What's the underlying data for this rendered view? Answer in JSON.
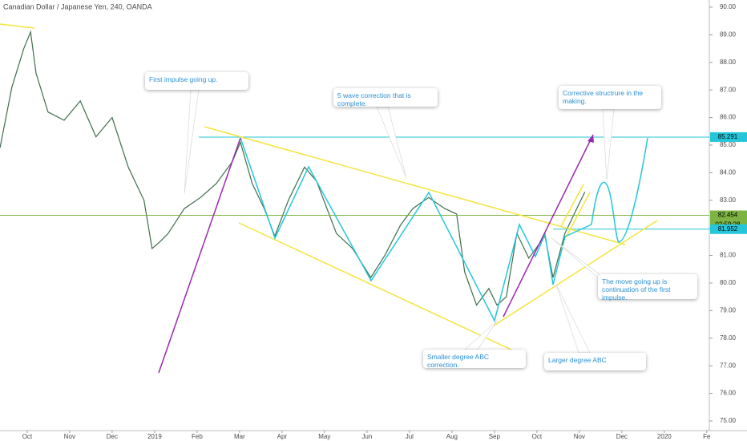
{
  "title": "Canadian Dollar / Japanese Yen, 240, OANDA",
  "annotations": [
    "First impulse going up.",
    "5 wave correction that is complete.",
    "Corrective structrure in the making.",
    "The move going up is continuation of the first impulse.",
    "Smaller degree ABC correction.",
    "Larger degree ABC"
  ],
  "chart_data": {
    "type": "line",
    "color": "#3d6e4a",
    "x": [
      -0.64,
      -0.36,
      -0.08,
      0.08,
      0.21,
      0.49,
      0.87,
      1.25,
      1.62,
      2.0,
      2.38,
      2.75,
      2.94,
      3.13,
      3.32,
      3.7,
      4.08,
      4.45,
      4.83,
      5.02,
      5.3,
      5.58,
      5.83,
      6.15,
      6.53,
      6.81,
      7.28,
      7.66,
      8.09,
      8.42,
      8.79,
      9.08,
      9.45,
      9.83,
      10.11,
      10.3,
      10.58,
      10.87,
      11.06,
      11.28,
      11.53,
      11.81,
      12.19,
      12.38,
      12.66,
      12.94,
      13.13
    ],
    "values": [
      84.9,
      87.1,
      88.5,
      89.1,
      87.6,
      86.2,
      85.9,
      86.6,
      85.3,
      86.0,
      84.2,
      83.0,
      81.25,
      81.5,
      81.8,
      82.7,
      83.1,
      83.6,
      84.4,
      85.1,
      83.6,
      82.7,
      81.7,
      83.0,
      84.2,
      83.7,
      81.8,
      81.25,
      80.2,
      81.0,
      82.1,
      82.7,
      83.1,
      82.7,
      82.5,
      80.4,
      79.2,
      79.8,
      79.2,
      79.5,
      81.8,
      80.9,
      81.7,
      80.2,
      81.8,
      82.7,
      83.3
    ],
    "xlim": [
      -0.64,
      16.06
    ],
    "ylim": [
      74.65,
      90.26
    ],
    "xticks": [
      {
        "value": 0,
        "label": "Oct"
      },
      {
        "value": 1,
        "label": "Nov"
      },
      {
        "value": 2,
        "label": "Dec"
      },
      {
        "value": 3,
        "label": "2019"
      },
      {
        "value": 4,
        "label": "Feb"
      },
      {
        "value": 5,
        "label": "Mar"
      },
      {
        "value": 6,
        "label": "Apr"
      },
      {
        "value": 7,
        "label": "May"
      },
      {
        "value": 8,
        "label": "Jun"
      },
      {
        "value": 9,
        "label": "Jul"
      },
      {
        "value": 10,
        "label": "Aug"
      },
      {
        "value": 11,
        "label": "Sep"
      },
      {
        "value": 12,
        "label": "Oct"
      },
      {
        "value": 13,
        "label": "Nov"
      },
      {
        "value": 14,
        "label": "Dec"
      },
      {
        "value": 15,
        "label": "2020"
      },
      {
        "value": 16,
        "label": "Fe"
      }
    ],
    "yticks": [
      {
        "value": 75,
        "label": "75.00"
      },
      {
        "value": 76,
        "label": "76.00"
      },
      {
        "value": 77,
        "label": "77.00"
      },
      {
        "value": 78,
        "label": "78.00"
      },
      {
        "value": 79,
        "label": "79.00"
      },
      {
        "value": 80,
        "label": "80.00"
      },
      {
        "value": 81,
        "label": "81.00"
      },
      {
        "value": 82,
        "label": "82.00"
      },
      {
        "value": 83,
        "label": "83.00"
      },
      {
        "value": 84,
        "label": "84.00"
      },
      {
        "value": 85,
        "label": "85.00"
      },
      {
        "value": 86,
        "label": "86.00"
      },
      {
        "value": 87,
        "label": "87.00"
      },
      {
        "value": 88,
        "label": "88.00"
      },
      {
        "value": 89,
        "label": "89.00"
      },
      {
        "value": 90,
        "label": "90.00"
      }
    ],
    "price_lines": [
      {
        "value": 85.291,
        "color": "#26c6da"
      },
      {
        "value": 82.454,
        "color": "#7cb342",
        "countdown": "02:59:28"
      },
      {
        "value": 81.952,
        "color": "#26c6da"
      }
    ]
  }
}
